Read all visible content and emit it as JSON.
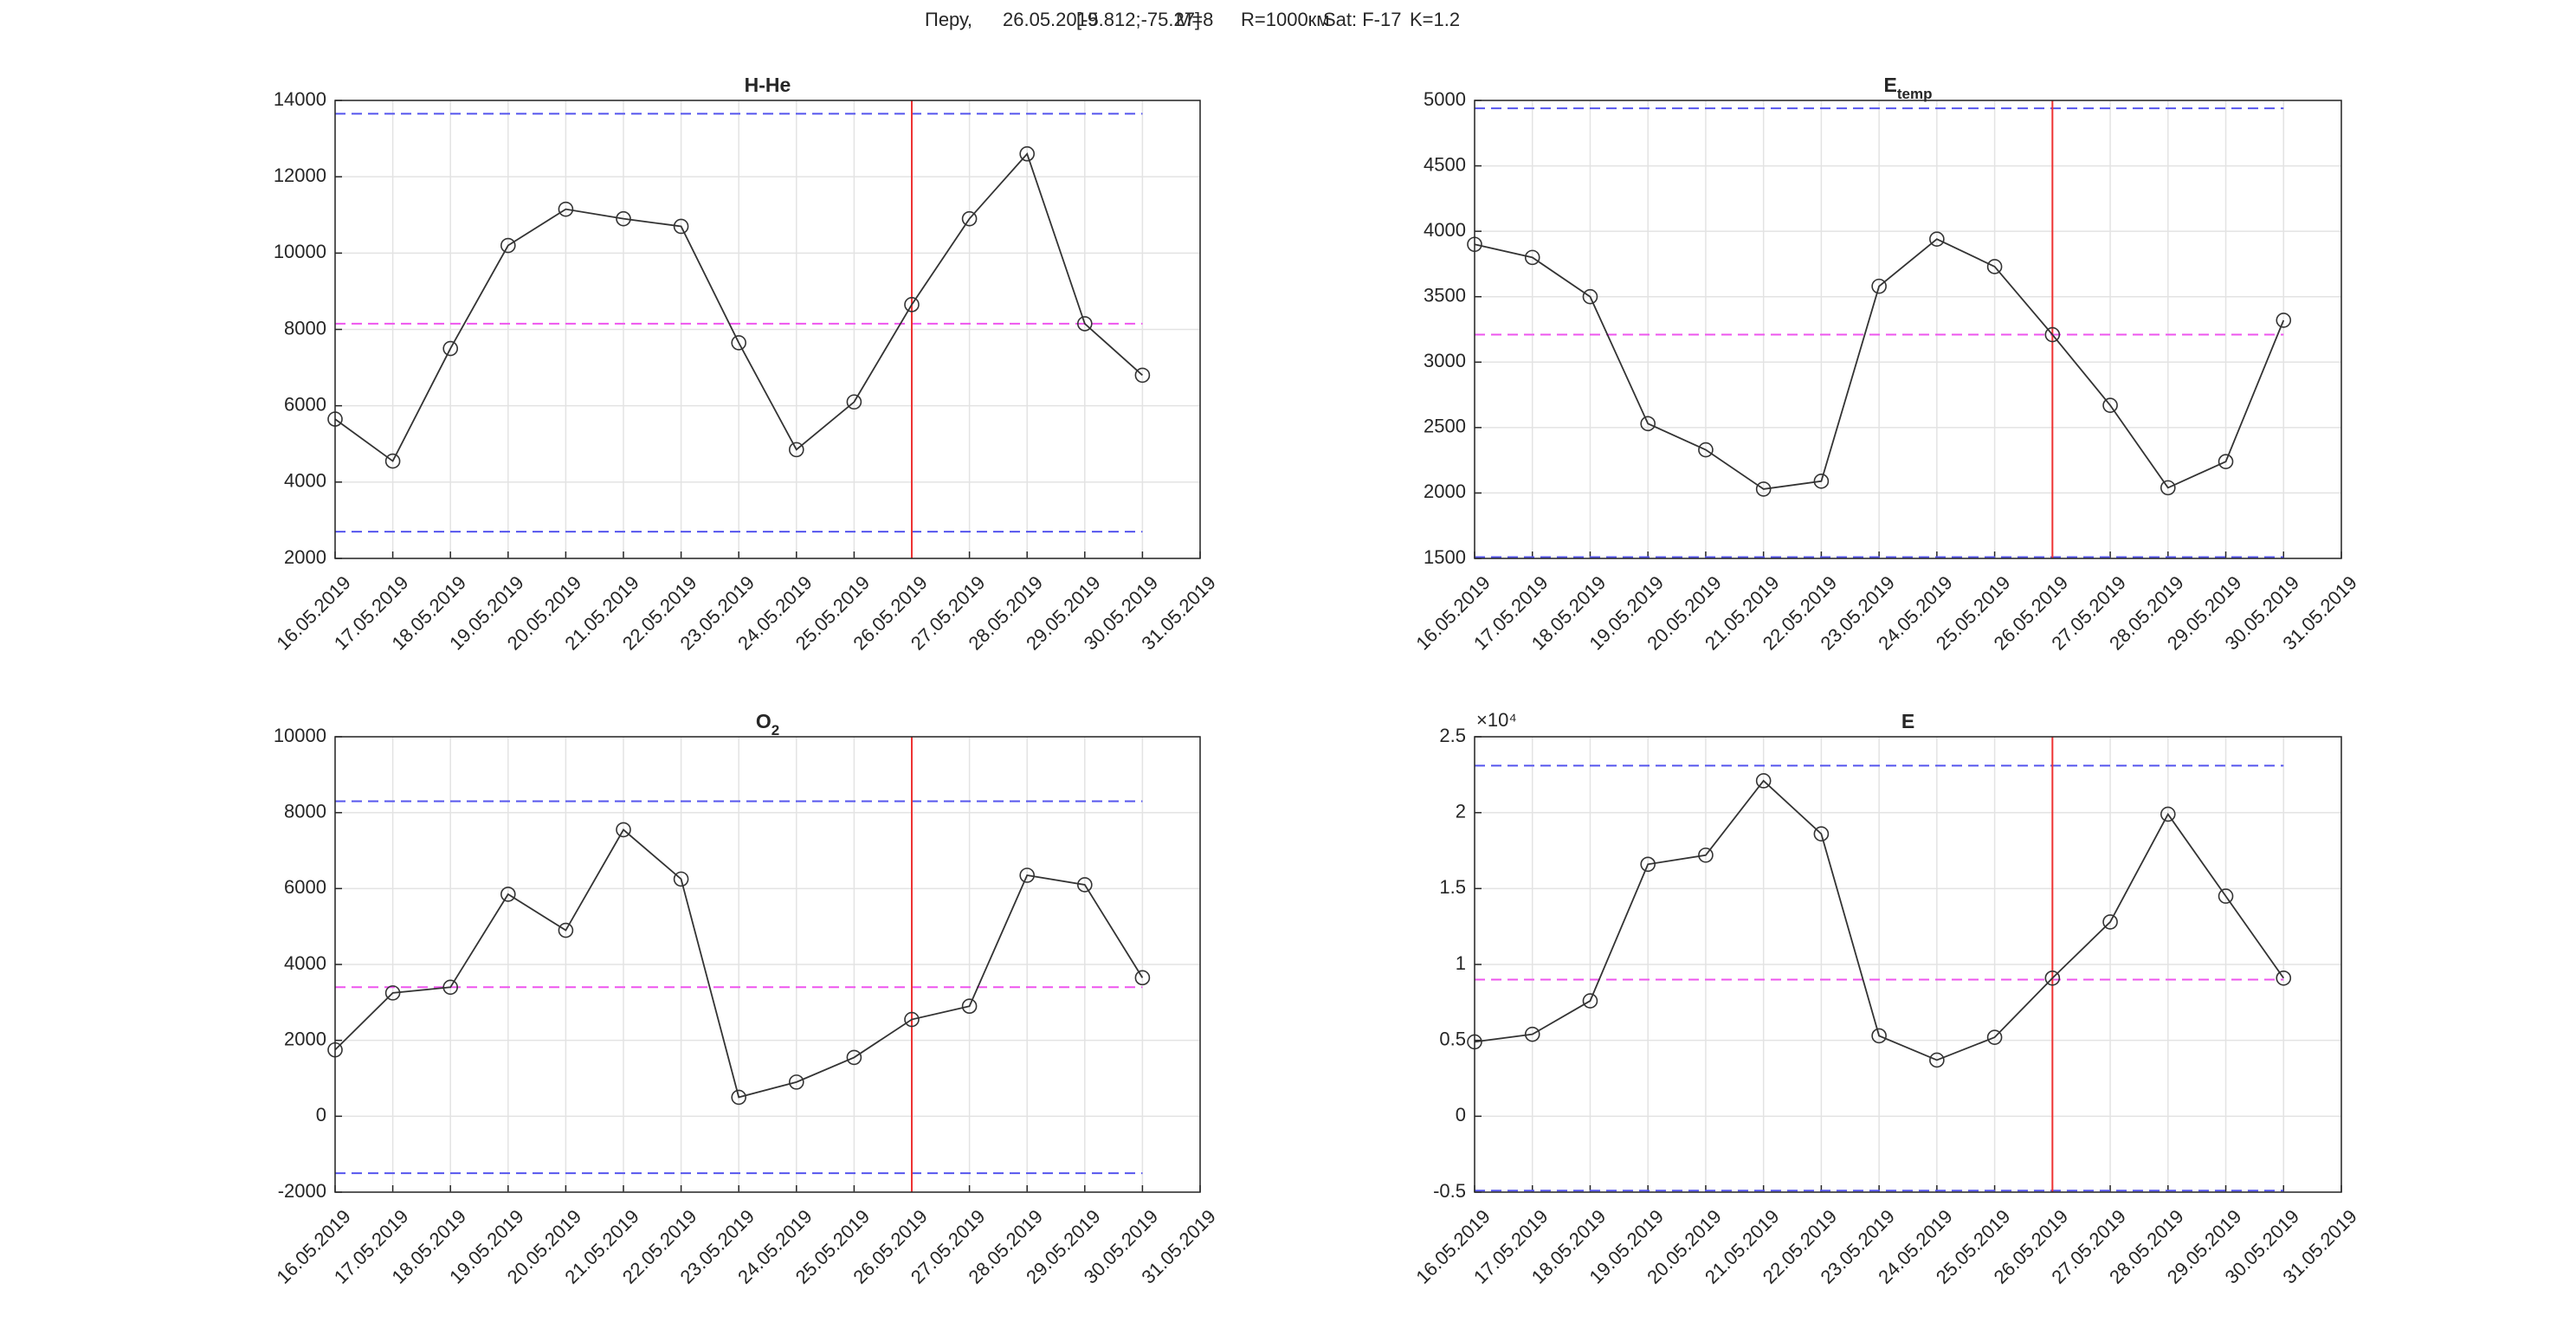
{
  "header": {
    "parts": [
      "Перу,",
      "26.05.2019",
      "[-5.812;-75.27]",
      "M=8",
      "R=1000км",
      "Sat: F-17",
      "K=1.2"
    ]
  },
  "chart_data": [
    {
      "type": "line",
      "title": "H-He",
      "x": [
        "16.05.2019",
        "17.05.2019",
        "18.05.2019",
        "19.05.2019",
        "20.05.2019",
        "21.05.2019",
        "22.05.2019",
        "23.05.2019",
        "24.05.2019",
        "25.05.2019",
        "26.05.2019",
        "27.05.2019",
        "28.05.2019",
        "29.05.2019",
        "30.05.2019"
      ],
      "xlim": [
        "16.05.2019",
        "31.05.2019"
      ],
      "xticks": [
        "16.05.2019",
        "17.05.2019",
        "18.05.2019",
        "19.05.2019",
        "20.05.2019",
        "21.05.2019",
        "22.05.2019",
        "23.05.2019",
        "24.05.2019",
        "25.05.2019",
        "26.05.2019",
        "27.05.2019",
        "28.05.2019",
        "29.05.2019",
        "30.05.2019",
        "31.05.2019"
      ],
      "series": [
        {
          "color": "#333333",
          "values": [
            5650,
            4550,
            7500,
            10200,
            11150,
            10900,
            10700,
            7650,
            4850,
            6100,
            8650,
            10900,
            12600,
            8150,
            6800
          ]
        }
      ],
      "hlines": [
        {
          "value": 13650,
          "color": "#5555ee"
        },
        {
          "value": 2700,
          "color": "#5555ee"
        },
        {
          "value": 8150,
          "color": "#ee55ee"
        }
      ],
      "vline": {
        "x": "26.05.2019",
        "color": "#ee3333"
      },
      "ylim": [
        2000,
        14000
      ],
      "yticks": [
        2000,
        4000,
        6000,
        8000,
        10000,
        12000,
        14000
      ],
      "grid": true
    },
    {
      "type": "line",
      "title": "E",
      "title_sub": "temp",
      "x": [
        "16.05.2019",
        "17.05.2019",
        "18.05.2019",
        "19.05.2019",
        "20.05.2019",
        "21.05.2019",
        "22.05.2019",
        "23.05.2019",
        "24.05.2019",
        "25.05.2019",
        "26.05.2019",
        "27.05.2019",
        "28.05.2019",
        "29.05.2019",
        "30.05.2019"
      ],
      "xlim": [
        "16.05.2019",
        "31.05.2019"
      ],
      "xticks": [
        "16.05.2019",
        "17.05.2019",
        "18.05.2019",
        "19.05.2019",
        "20.05.2019",
        "21.05.2019",
        "22.05.2019",
        "23.05.2019",
        "24.05.2019",
        "25.05.2019",
        "26.05.2019",
        "27.05.2019",
        "28.05.2019",
        "29.05.2019",
        "30.05.2019",
        "31.05.2019"
      ],
      "series": [
        {
          "color": "#333333",
          "values": [
            3900,
            3800,
            3500,
            2530,
            2330,
            2030,
            2090,
            3580,
            3940,
            3730,
            3210,
            2670,
            2040,
            2240,
            3320
          ]
        }
      ],
      "hlines": [
        {
          "value": 4940,
          "color": "#5555ee"
        },
        {
          "value": 1510,
          "color": "#5555ee"
        },
        {
          "value": 3210,
          "color": "#ee55ee"
        }
      ],
      "vline": {
        "x": "26.05.2019",
        "color": "#ee3333"
      },
      "ylim": [
        1500,
        5000
      ],
      "yticks": [
        1500,
        2000,
        2500,
        3000,
        3500,
        4000,
        4500,
        5000
      ],
      "grid": true
    },
    {
      "type": "line",
      "title": "O",
      "title_sub": "2",
      "x": [
        "16.05.2019",
        "17.05.2019",
        "18.05.2019",
        "19.05.2019",
        "20.05.2019",
        "21.05.2019",
        "22.05.2019",
        "23.05.2019",
        "24.05.2019",
        "25.05.2019",
        "26.05.2019",
        "27.05.2019",
        "28.05.2019",
        "29.05.2019",
        "30.05.2019"
      ],
      "xlim": [
        "16.05.2019",
        "31.05.2019"
      ],
      "xticks": [
        "16.05.2019",
        "17.05.2019",
        "18.05.2019",
        "19.05.2019",
        "20.05.2019",
        "21.05.2019",
        "22.05.2019",
        "23.05.2019",
        "24.05.2019",
        "25.05.2019",
        "26.05.2019",
        "27.05.2019",
        "28.05.2019",
        "29.05.2019",
        "30.05.2019",
        "31.05.2019"
      ],
      "series": [
        {
          "color": "#333333",
          "values": [
            1750,
            3250,
            3400,
            5850,
            4900,
            7550,
            6250,
            500,
            900,
            1550,
            2550,
            2900,
            6350,
            6100,
            3650
          ]
        }
      ],
      "hlines": [
        {
          "value": 8300,
          "color": "#5555ee"
        },
        {
          "value": -1500,
          "color": "#5555ee"
        },
        {
          "value": 3400,
          "color": "#ee55ee"
        }
      ],
      "vline": {
        "x": "26.05.2019",
        "color": "#ee3333"
      },
      "ylim": [
        -2000,
        10000
      ],
      "yticks": [
        -2000,
        0,
        2000,
        4000,
        6000,
        8000,
        10000
      ],
      "grid": true
    },
    {
      "type": "line",
      "title": "E",
      "y_multiplier": "×10⁴",
      "x": [
        "16.05.2019",
        "17.05.2019",
        "18.05.2019",
        "19.05.2019",
        "20.05.2019",
        "21.05.2019",
        "22.05.2019",
        "23.05.2019",
        "24.05.2019",
        "25.05.2019",
        "26.05.2019",
        "27.05.2019",
        "28.05.2019",
        "29.05.2019",
        "30.05.2019"
      ],
      "xlim": [
        "16.05.2019",
        "31.05.2019"
      ],
      "xticks": [
        "16.05.2019",
        "17.05.2019",
        "18.05.2019",
        "19.05.2019",
        "20.05.2019",
        "21.05.2019",
        "22.05.2019",
        "23.05.2019",
        "24.05.2019",
        "25.05.2019",
        "26.05.2019",
        "27.05.2019",
        "28.05.2019",
        "29.05.2019",
        "30.05.2019",
        "31.05.2019"
      ],
      "series": [
        {
          "color": "#333333",
          "values": [
            4900,
            5400,
            7600,
            16600,
            17200,
            22100,
            18600,
            5300,
            3700,
            5200,
            9100,
            12800,
            19900,
            14500,
            9100
          ]
        }
      ],
      "hlines": [
        {
          "value": 23100,
          "color": "#5555ee"
        },
        {
          "value": -4900,
          "color": "#5555ee"
        },
        {
          "value": 9000,
          "color": "#ee55ee"
        }
      ],
      "vline": {
        "x": "26.05.2019",
        "color": "#ee3333"
      },
      "ylim": [
        -5000,
        25000
      ],
      "yticks": [
        {
          "value": -5000,
          "label": "-0.5"
        },
        0,
        {
          "value": 5000,
          "label": "0.5"
        },
        {
          "value": 10000,
          "label": "1"
        },
        {
          "value": 15000,
          "label": "1.5"
        },
        {
          "value": 20000,
          "label": "2"
        },
        {
          "value": 25000,
          "label": "2.5"
        }
      ],
      "grid": true
    }
  ]
}
